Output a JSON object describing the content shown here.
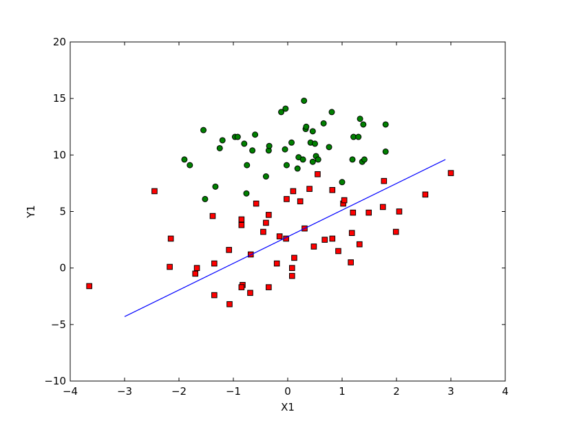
{
  "chart_data": {
    "type": "scatter",
    "title": "",
    "xlabel": "X1",
    "ylabel": "Y1",
    "xlim": [
      -4,
      4
    ],
    "ylim": [
      -10,
      20
    ],
    "xticks": [
      -4,
      -3,
      -2,
      -1,
      0,
      1,
      2,
      3,
      4
    ],
    "yticks": [
      -10,
      -5,
      0,
      5,
      10,
      15,
      20
    ],
    "xtick_labels": [
      "−4",
      "−3",
      "−2",
      "−1",
      "0",
      "1",
      "2",
      "3",
      "4"
    ],
    "ytick_labels": [
      "−10",
      "−5",
      "0",
      "5",
      "10",
      "15",
      "20"
    ],
    "grid": false,
    "legend": "none",
    "series": [
      {
        "marker": "circle",
        "color": "#008000",
        "edgecolor": "#000000",
        "points": [
          [
            -1.9,
            9.6
          ],
          [
            -1.8,
            9.1
          ],
          [
            -1.55,
            12.2
          ],
          [
            -1.52,
            6.1
          ],
          [
            -1.33,
            7.2
          ],
          [
            -1.25,
            10.6
          ],
          [
            -1.2,
            11.3
          ],
          [
            -0.97,
            11.6
          ],
          [
            -0.92,
            11.6
          ],
          [
            -0.8,
            11.0
          ],
          [
            -0.75,
            9.1
          ],
          [
            -0.76,
            6.6
          ],
          [
            -0.65,
            10.4
          ],
          [
            -0.6,
            11.8
          ],
          [
            -0.4,
            8.1
          ],
          [
            -0.35,
            10.4
          ],
          [
            -0.34,
            10.8
          ],
          [
            -0.12,
            13.8
          ],
          [
            -0.04,
            14.1
          ],
          [
            -0.05,
            10.5
          ],
          [
            -0.02,
            9.1
          ],
          [
            0.07,
            11.1
          ],
          [
            0.18,
            8.8
          ],
          [
            0.2,
            9.8
          ],
          [
            0.28,
            9.6
          ],
          [
            0.3,
            14.8
          ],
          [
            0.33,
            12.3
          ],
          [
            0.34,
            12.5
          ],
          [
            0.42,
            11.1
          ],
          [
            0.46,
            12.1
          ],
          [
            0.46,
            9.4
          ],
          [
            0.5,
            11.0
          ],
          [
            0.52,
            9.9
          ],
          [
            0.56,
            9.6
          ],
          [
            0.66,
            12.8
          ],
          [
            0.76,
            10.7
          ],
          [
            0.81,
            13.8
          ],
          [
            1.0,
            7.6
          ],
          [
            1.19,
            9.6
          ],
          [
            1.21,
            11.6
          ],
          [
            1.3,
            11.6
          ],
          [
            1.33,
            13.2
          ],
          [
            1.37,
            9.4
          ],
          [
            1.39,
            12.7
          ],
          [
            1.41,
            9.6
          ],
          [
            1.8,
            12.7
          ],
          [
            1.8,
            10.3
          ]
        ]
      },
      {
        "marker": "square",
        "color": "#ff0000",
        "edgecolor": "#000000",
        "points": [
          [
            -3.65,
            -1.6
          ],
          [
            -2.45,
            6.8
          ],
          [
            -2.15,
            2.6
          ],
          [
            -2.17,
            0.1
          ],
          [
            -1.67,
            0.0
          ],
          [
            -1.7,
            -0.5
          ],
          [
            -1.38,
            4.6
          ],
          [
            -1.35,
            0.4
          ],
          [
            -1.35,
            -2.4
          ],
          [
            -1.08,
            1.6
          ],
          [
            -1.07,
            -3.2
          ],
          [
            -0.85,
            4.3
          ],
          [
            -0.85,
            3.8
          ],
          [
            -0.83,
            -1.5
          ],
          [
            -0.85,
            -1.7
          ],
          [
            -0.68,
            1.2
          ],
          [
            -0.69,
            -2.2
          ],
          [
            -0.58,
            5.7
          ],
          [
            -0.45,
            3.2
          ],
          [
            -0.4,
            4.0
          ],
          [
            -0.35,
            4.7
          ],
          [
            -0.35,
            -1.7
          ],
          [
            -0.2,
            0.4
          ],
          [
            -0.15,
            2.8
          ],
          [
            -0.03,
            2.6
          ],
          [
            -0.02,
            6.1
          ],
          [
            0.08,
            0.0
          ],
          [
            0.08,
            -0.7
          ],
          [
            0.1,
            6.8
          ],
          [
            0.12,
            0.9
          ],
          [
            0.23,
            5.9
          ],
          [
            0.31,
            3.5
          ],
          [
            0.4,
            7.0
          ],
          [
            0.48,
            1.9
          ],
          [
            0.55,
            8.3
          ],
          [
            0.68,
            2.5
          ],
          [
            0.82,
            6.9
          ],
          [
            0.82,
            2.6
          ],
          [
            0.93,
            1.5
          ],
          [
            1.02,
            5.7
          ],
          [
            1.04,
            6.0
          ],
          [
            1.16,
            0.5
          ],
          [
            1.18,
            3.1
          ],
          [
            1.2,
            4.9
          ],
          [
            1.32,
            2.1
          ],
          [
            1.49,
            4.9
          ],
          [
            1.75,
            5.4
          ],
          [
            1.77,
            7.7
          ],
          [
            1.99,
            3.2
          ],
          [
            2.05,
            5.0
          ],
          [
            2.53,
            6.5
          ],
          [
            3.0,
            8.4
          ]
        ]
      },
      {
        "marker": "line",
        "color": "#0000ff",
        "points": [
          [
            -3.0,
            -4.3
          ],
          [
            2.9,
            9.6
          ]
        ]
      }
    ]
  }
}
